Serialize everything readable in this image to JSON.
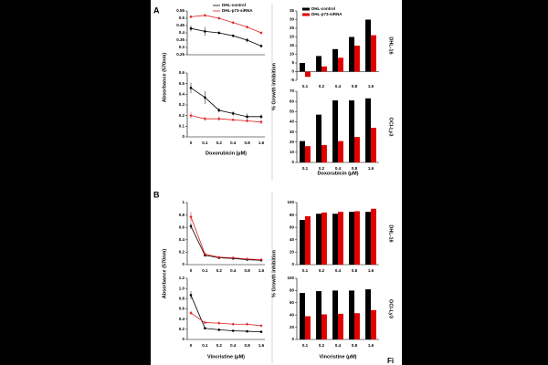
{
  "panel_labels": [
    "A",
    "B"
  ],
  "footer_fragment": "Fi",
  "chart_data": [
    {
      "type": "line",
      "ylim": [
        0.25,
        0.55
      ],
      "yticks": [
        0.25,
        0.3,
        0.35,
        0.4,
        0.45,
        0.5,
        0.55
      ],
      "legend": "top",
      "series": [
        {
          "name": "DHL-control",
          "color": "#000000",
          "values": [
            0.43,
            0.41,
            0.4,
            0.38,
            0.35,
            0.31
          ],
          "errors": [
            0.02,
            0.03,
            0.01,
            0.01,
            0.015,
            0.01
          ]
        },
        {
          "name": "DHL-p73-siRNA",
          "color": "#e02020",
          "values": [
            0.51,
            0.52,
            0.5,
            0.47,
            0.44,
            0.4
          ],
          "errors": [
            0.01,
            0.01,
            0.01,
            0.01,
            0.01,
            0.01
          ]
        }
      ]
    },
    {
      "type": "line",
      "ylim": [
        0,
        0.6
      ],
      "yticks": [
        0,
        0.1,
        0.2,
        0.3,
        0.4,
        0.5,
        0.6
      ],
      "categories": [
        "0",
        "0.1",
        "0.2",
        "0.4",
        "0.8",
        "1.6"
      ],
      "x_label": "Doxorubicin (µM)",
      "y_label": "Absorbance (570nm)",
      "series": [
        {
          "color": "#000000",
          "values": [
            0.46,
            0.37,
            0.25,
            0.22,
            0.19,
            0.19
          ],
          "errors": [
            0.05,
            0.06,
            0.02,
            0.02,
            0.03,
            0.02
          ]
        },
        {
          "color": "#e02020",
          "values": [
            0.2,
            0.17,
            0.17,
            0.16,
            0.15,
            0.14
          ],
          "errors": [
            0.03,
            0.02,
            0.02,
            0.01,
            0.01,
            0.02
          ]
        }
      ]
    },
    {
      "type": "bar",
      "ylim": [
        -5,
        35
      ],
      "yticks": [
        -5,
        0,
        5,
        10,
        15,
        20,
        25,
        30,
        35
      ],
      "categories": [
        "0.1",
        "0.2",
        "0.4",
        "0.8",
        "1.6"
      ],
      "side_label": "DHL-16",
      "legend": "top",
      "series": [
        {
          "name": "DHL-control",
          "color": "#000000",
          "values": [
            5,
            9,
            13,
            20,
            30
          ]
        },
        {
          "name": "DHL-p73-siRNA",
          "color": "#e00000",
          "values": [
            -3,
            3,
            8,
            15,
            21
          ]
        }
      ]
    },
    {
      "type": "bar",
      "ylim": [
        0,
        70
      ],
      "yticks": [
        0,
        10,
        20,
        30,
        40,
        50,
        60,
        70
      ],
      "categories": [
        "0.1",
        "0.2",
        "0.4",
        "0.8",
        "1.6"
      ],
      "side_label": "OCI-Ly3",
      "x_label": "Doxorubicin (µM)",
      "y_label": "% Growth inhibition",
      "series": [
        {
          "color": "#000000",
          "values": [
            21,
            47,
            61,
            61,
            63
          ]
        },
        {
          "color": "#e00000",
          "values": [
            16,
            17,
            21,
            25,
            34
          ]
        }
      ]
    },
    {
      "type": "line",
      "ylim": [
        0,
        1
      ],
      "yticks": [
        0,
        0.2,
        0.4,
        0.6,
        0.8,
        1
      ],
      "categories": [
        "0",
        "0.1",
        "0.2",
        "0.4",
        "0.8",
        "1.6"
      ],
      "series": [
        {
          "color": "#000000",
          "values": [
            0.62,
            0.15,
            0.11,
            0.1,
            0.08,
            0.07
          ],
          "errors": [
            0.05,
            0.02,
            0.01,
            0.01,
            0.01,
            0.01
          ]
        },
        {
          "color": "#e02020",
          "values": [
            0.77,
            0.17,
            0.12,
            0.11,
            0.09,
            0.08
          ],
          "errors": [
            0.08,
            0.02,
            0.01,
            0.01,
            0.01,
            0.01
          ]
        }
      ]
    },
    {
      "type": "line",
      "ylim": [
        0,
        1.2
      ],
      "yticks": [
        0,
        0.2,
        0.4,
        0.6,
        0.8,
        {
          "value": 1,
          "label": "1.0"
        },
        1.2
      ],
      "categories": [
        "0",
        "0.1",
        "0.2",
        "0.4",
        "0.8",
        "1.6"
      ],
      "x_label": "Vincristine (µM)",
      "y_label": "Absorbance (570nm)",
      "series": [
        {
          "color": "#000000",
          "values": [
            0.87,
            0.22,
            0.19,
            0.17,
            0.16,
            0.15
          ],
          "errors": [
            0.08,
            0.02,
            0.01,
            0.01,
            0.01,
            0.01
          ]
        },
        {
          "color": "#e02020",
          "values": [
            0.52,
            0.33,
            0.32,
            0.3,
            0.3,
            0.27
          ],
          "errors": [
            0.04,
            0.02,
            0.01,
            0.01,
            0.01,
            0.01
          ]
        }
      ]
    },
    {
      "type": "bar",
      "ylim": [
        0,
        100
      ],
      "yticks": [
        0,
        20,
        40,
        60,
        80,
        100
      ],
      "categories": [
        "0.1",
        "0.2",
        "0.4",
        "0.8",
        "1.6"
      ],
      "side_label": "DHL-16",
      "series": [
        {
          "color": "#000000",
          "values": [
            72,
            82,
            82,
            85,
            85
          ]
        },
        {
          "color": "#e00000",
          "values": [
            78,
            84,
            85,
            86,
            90
          ]
        }
      ]
    },
    {
      "type": "bar",
      "ylim": [
        0,
        100
      ],
      "yticks": [
        0,
        20,
        40,
        60,
        80,
        100
      ],
      "categories": [
        "0.1",
        "0.2",
        "0.4",
        "0.8",
        "1.6"
      ],
      "side_label": "OCI-Ly3",
      "x_label": "Vincristine (µM)",
      "y_label": "% Growth inhibition",
      "series": [
        {
          "color": "#000000",
          "values": [
            76,
            79,
            80,
            80,
            82
          ]
        },
        {
          "color": "#e00000",
          "values": [
            38,
            41,
            42,
            43,
            48
          ]
        }
      ]
    }
  ]
}
